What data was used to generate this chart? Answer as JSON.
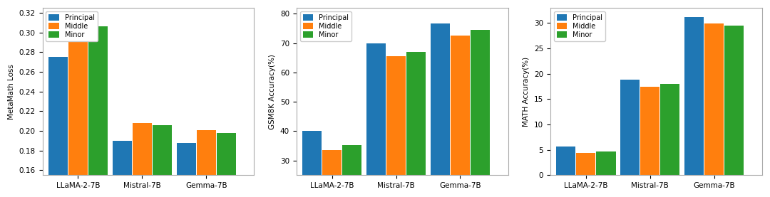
{
  "categories": [
    "LLaMA-2-7B",
    "Mistral-7B",
    "Gemma-7B"
  ],
  "legend_labels": [
    "Principal",
    "Middle",
    "Minor"
  ],
  "colors": [
    "#1f77b4",
    "#ff7f0e",
    "#2ca02c"
  ],
  "chart1": {
    "ylabel": "MetaMath Loss",
    "ylim": [
      0.155,
      0.325
    ],
    "yticks": [
      0.16,
      0.18,
      0.2,
      0.22,
      0.24,
      0.26,
      0.28,
      0.3,
      0.32
    ],
    "data": {
      "Principal": [
        0.275,
        0.19,
        0.188
      ],
      "Middle": [
        0.31,
        0.208,
        0.201
      ],
      "Minor": [
        0.306,
        0.206,
        0.198
      ]
    }
  },
  "chart2": {
    "ylabel": "GSM8K Accuracy(%)",
    "ylim": [
      25,
      82
    ],
    "yticks": [
      30,
      40,
      50,
      60,
      70,
      80
    ],
    "data": {
      "Principal": [
        40.0,
        69.8,
        76.7
      ],
      "Middle": [
        33.5,
        65.5,
        72.5
      ],
      "Minor": [
        35.2,
        67.0,
        74.5
      ]
    }
  },
  "chart3": {
    "ylabel": "MATH Accuracy(%)",
    "ylim": [
      0,
      33
    ],
    "yticks": [
      0,
      5,
      10,
      15,
      20,
      25,
      30
    ],
    "data": {
      "Principal": [
        5.6,
        18.8,
        31.2
      ],
      "Middle": [
        4.4,
        17.5,
        29.9
      ],
      "Minor": [
        4.6,
        18.0,
        29.5
      ]
    }
  }
}
